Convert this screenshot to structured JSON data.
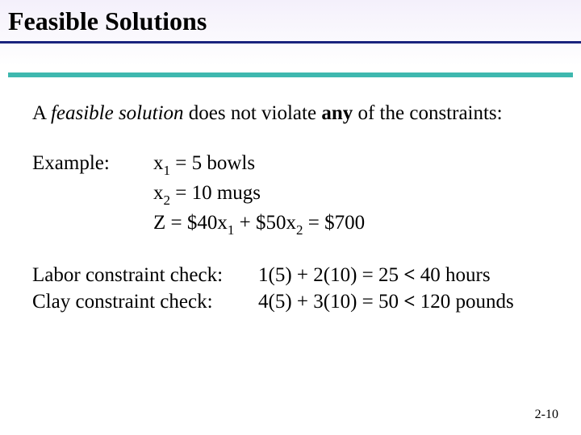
{
  "title": "Feasible Solutions",
  "styling": {
    "slide_width": 720,
    "slide_height": 540,
    "background_gradient_top": "#f4f0fb",
    "background_gradient_bottom": "#ffffff",
    "title_fontsize": 32,
    "body_fontsize": 25,
    "underline_blue_color": "#1a237e",
    "underline_teal_color": "#3fb8af",
    "font_family": "Times New Roman"
  },
  "intro": {
    "pre": "A ",
    "term": "feasible solution",
    "mid": " does not violate ",
    "emph": "any",
    "post": " of the constraints:"
  },
  "example": {
    "label": "Example:",
    "x1": {
      "var": "x",
      "sub": "1",
      "rest": " = 5 bowls"
    },
    "x2": {
      "var": "x",
      "sub": "2",
      "rest": " = 10 mugs"
    },
    "z": {
      "pre": "Z  = $40x",
      "sub1": "1",
      "mid": " + $50x",
      "sub2": "2",
      "post": " = $700"
    }
  },
  "constraints": {
    "labor": {
      "label": "Labor constraint check:",
      "pre": "1(5) + 2(10) = 25 ",
      "op": "<",
      "post": " 40 hours"
    },
    "clay": {
      "label": "Clay constraint check:",
      "pre": "4(5) + 3(10) = 50 ",
      "op": "<",
      "post": " 120 pounds"
    }
  },
  "page_number": "2-10"
}
